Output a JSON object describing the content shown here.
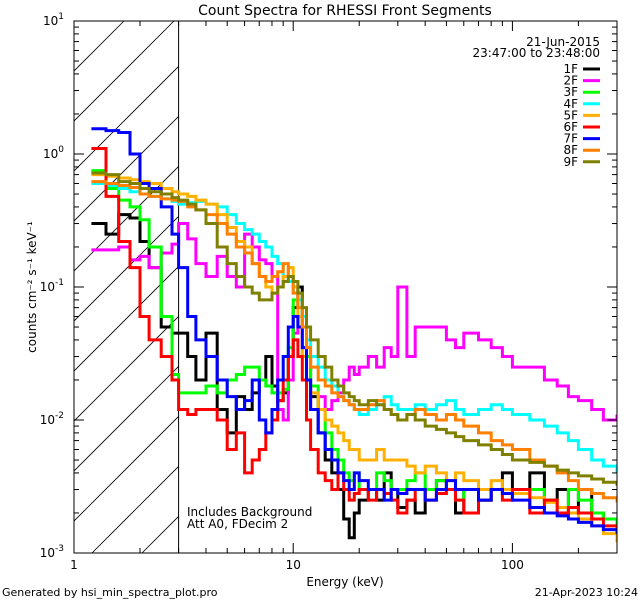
{
  "chart_data": {
    "type": "line",
    "title": "Count Spectra for RHESSI Front Segments",
    "xlabel": "Energy (keV)",
    "ylabel": "counts cm⁻² s⁻¹ keV⁻¹",
    "xscale": "log",
    "yscale": "log",
    "xlim": [
      1,
      300
    ],
    "ylim": [
      0.001,
      10
    ],
    "x_ticks": [
      {
        "v": 1,
        "label": "1"
      },
      {
        "v": 10,
        "label": "10"
      },
      {
        "v": 100,
        "label": "100"
      }
    ],
    "y_ticks": [
      {
        "v": 0.001,
        "base": "10",
        "exp": "-3"
      },
      {
        "v": 0.01,
        "base": "10",
        "exp": "-2"
      },
      {
        "v": 0.1,
        "base": "10",
        "exp": "-1"
      },
      {
        "v": 1,
        "base": "10",
        "exp": "0"
      },
      {
        "v": 10,
        "base": "10",
        "exp": "1"
      }
    ],
    "attenuator_shade_max_kev": 3,
    "header_lines": [
      "21-Jun-2015",
      "23:47:00 to 23:48:00"
    ],
    "annotations": [
      "Includes Background",
      "Att A0, FDecim 2"
    ],
    "legend_position": "top-right",
    "series": [
      {
        "name": "1F",
        "color": "#000000",
        "x": [
          1.2,
          1.4,
          1.6,
          1.8,
          2,
          2.2,
          2.5,
          2.8,
          3,
          3.3,
          3.6,
          4,
          4.5,
          5,
          5.5,
          6,
          6.5,
          7,
          7.5,
          8,
          8.5,
          9,
          9.5,
          10,
          10.5,
          11,
          11.5,
          12,
          13,
          14,
          15,
          16,
          17,
          18,
          19,
          20,
          22,
          24,
          26,
          28,
          30,
          33,
          36,
          40,
          45,
          50,
          55,
          60,
          70,
          80,
          90,
          100,
          120,
          140,
          160,
          180,
          200,
          230,
          260,
          300
        ],
        "y": [
          0.3,
          0.25,
          0.35,
          0.33,
          0.22,
          0.14,
          0.05,
          0.045,
          0.045,
          0.03,
          0.02,
          0.045,
          0.012,
          0.008,
          0.015,
          0.012,
          0.016,
          0.02,
          0.03,
          0.018,
          0.014,
          0.016,
          0.03,
          0.07,
          0.1,
          0.06,
          0.03,
          0.015,
          0.008,
          0.005,
          0.004,
          0.003,
          0.0018,
          0.0013,
          0.002,
          0.0025,
          0.003,
          0.0025,
          0.004,
          0.003,
          0.0022,
          0.0025,
          0.002,
          0.003,
          0.0035,
          0.003,
          0.002,
          0.003,
          0.0025,
          0.003,
          0.004,
          0.003,
          0.004,
          0.0025,
          0.003,
          0.002,
          0.003,
          0.002,
          0.0018,
          0.0016
        ]
      },
      {
        "name": "2F",
        "color": "#ff00ff",
        "x": [
          1.2,
          1.4,
          1.6,
          1.8,
          2,
          2.2,
          2.5,
          2.8,
          3,
          3.3,
          3.6,
          4,
          4.5,
          5,
          5.5,
          6,
          6.5,
          7,
          7.5,
          8,
          8.5,
          9,
          9.5,
          10,
          10.5,
          11,
          11.5,
          12,
          13,
          14,
          15,
          16,
          17,
          18,
          19,
          20,
          22,
          24,
          26,
          28,
          30,
          33,
          36,
          40,
          45,
          50,
          55,
          60,
          70,
          80,
          90,
          100,
          120,
          140,
          160,
          180,
          200,
          230,
          260,
          300
        ],
        "y": [
          0.19,
          0.19,
          0.2,
          0.16,
          0.17,
          0.14,
          0.18,
          0.21,
          0.3,
          0.23,
          0.15,
          0.12,
          0.17,
          0.12,
          0.1,
          0.25,
          0.2,
          0.16,
          0.15,
          0.12,
          0.012,
          0.01,
          0.02,
          0.045,
          0.06,
          0.035,
          0.02,
          0.012,
          0.015,
          0.012,
          0.014,
          0.016,
          0.02,
          0.025,
          0.022,
          0.025,
          0.03,
          0.025,
          0.035,
          0.03,
          0.1,
          0.03,
          0.05,
          0.05,
          0.05,
          0.04,
          0.035,
          0.045,
          0.04,
          0.035,
          0.03,
          0.025,
          0.025,
          0.02,
          0.018,
          0.015,
          0.014,
          0.012,
          0.01,
          0.011
        ]
      },
      {
        "name": "3F",
        "color": "#00ff00",
        "x": [
          1.2,
          1.4,
          1.6,
          1.8,
          2,
          2.2,
          2.5,
          2.8,
          3,
          3.3,
          3.6,
          4,
          4.5,
          5,
          5.5,
          6,
          6.5,
          7,
          7.5,
          8,
          8.5,
          9,
          9.5,
          10,
          10.5,
          11,
          11.5,
          12,
          13,
          14,
          15,
          16,
          17,
          18,
          19,
          20,
          22,
          24,
          26,
          28,
          30,
          33,
          36,
          40,
          45,
          50,
          55,
          60,
          70,
          80,
          90,
          100,
          120,
          140,
          160,
          180,
          200,
          230,
          260,
          300
        ],
        "y": [
          0.75,
          0.55,
          0.45,
          0.4,
          0.32,
          0.2,
          0.06,
          0.022,
          0.016,
          0.016,
          0.016,
          0.018,
          0.016,
          0.02,
          0.022,
          0.025,
          0.025,
          0.02,
          0.018,
          0.016,
          0.016,
          0.017,
          0.035,
          0.08,
          0.07,
          0.05,
          0.03,
          0.018,
          0.012,
          0.008,
          0.006,
          0.005,
          0.004,
          0.0035,
          0.004,
          0.003,
          0.003,
          0.004,
          0.0035,
          0.003,
          0.003,
          0.0035,
          0.004,
          0.003,
          0.0035,
          0.003,
          0.0025,
          0.003,
          0.0025,
          0.003,
          0.0028,
          0.003,
          0.003,
          0.0025,
          0.002,
          0.003,
          0.0025,
          0.002,
          0.0018,
          0.0015
        ]
      },
      {
        "name": "4F",
        "color": "#00ffff",
        "x": [
          1.2,
          1.4,
          1.6,
          1.8,
          2,
          2.2,
          2.5,
          2.8,
          3,
          3.3,
          3.6,
          4,
          4.5,
          5,
          5.5,
          6,
          6.5,
          7,
          7.5,
          8,
          8.5,
          9,
          9.5,
          10,
          10.5,
          11,
          11.5,
          12,
          13,
          14,
          15,
          16,
          17,
          18,
          19,
          20,
          22,
          24,
          26,
          28,
          30,
          33,
          36,
          40,
          45,
          50,
          55,
          60,
          70,
          80,
          90,
          100,
          120,
          140,
          160,
          180,
          200,
          230,
          260,
          300
        ],
        "y": [
          0.6,
          0.58,
          0.55,
          0.52,
          0.5,
          0.48,
          0.46,
          0.44,
          0.42,
          0.43,
          0.44,
          0.42,
          0.4,
          0.35,
          0.3,
          0.27,
          0.25,
          0.22,
          0.2,
          0.17,
          0.15,
          0.12,
          0.11,
          0.09,
          0.08,
          0.06,
          0.04,
          0.03,
          0.025,
          0.02,
          0.018,
          0.015,
          0.014,
          0.013,
          0.012,
          0.011,
          0.012,
          0.013,
          0.015,
          0.013,
          0.012,
          0.012,
          0.013,
          0.012,
          0.013,
          0.014,
          0.012,
          0.011,
          0.012,
          0.013,
          0.012,
          0.011,
          0.01,
          0.009,
          0.008,
          0.007,
          0.006,
          0.005,
          0.0045,
          0.004
        ]
      },
      {
        "name": "5F",
        "color": "#ffb000",
        "x": [
          1.2,
          1.4,
          1.6,
          1.8,
          2,
          2.2,
          2.5,
          2.8,
          3,
          3.3,
          3.6,
          4,
          4.5,
          5,
          5.5,
          6,
          6.5,
          7,
          7.5,
          8,
          8.5,
          9,
          9.5,
          10,
          10.5,
          11,
          11.5,
          12,
          13,
          14,
          15,
          16,
          17,
          18,
          19,
          20,
          22,
          24,
          26,
          28,
          30,
          33,
          36,
          40,
          45,
          50,
          55,
          60,
          70,
          80,
          90,
          100,
          120,
          140,
          160,
          180,
          200,
          230,
          260,
          300
        ],
        "y": [
          0.7,
          0.68,
          0.66,
          0.64,
          0.62,
          0.6,
          0.55,
          0.52,
          0.5,
          0.48,
          0.45,
          0.42,
          0.35,
          0.28,
          0.22,
          0.2,
          0.15,
          0.12,
          0.1,
          0.09,
          0.1,
          0.12,
          0.14,
          0.1,
          0.06,
          0.03,
          0.02,
          0.016,
          0.012,
          0.01,
          0.009,
          0.008,
          0.007,
          0.006,
          0.006,
          0.005,
          0.005,
          0.006,
          0.005,
          0.005,
          0.005,
          0.0045,
          0.004,
          0.0045,
          0.004,
          0.0035,
          0.004,
          0.0035,
          0.003,
          0.0035,
          0.003,
          0.0028,
          0.0026,
          0.0024,
          0.0022,
          0.002,
          0.0018,
          0.0016,
          0.0014,
          0.0012
        ]
      },
      {
        "name": "6F",
        "color": "#ff0000",
        "x": [
          1.2,
          1.4,
          1.6,
          1.8,
          2,
          2.2,
          2.5,
          2.8,
          3,
          3.3,
          3.6,
          4,
          4.5,
          5,
          5.5,
          6,
          6.5,
          7,
          7.5,
          8,
          8.5,
          9,
          9.5,
          10,
          10.5,
          11,
          11.5,
          12,
          13,
          14,
          15,
          16,
          17,
          18,
          19,
          20,
          22,
          24,
          26,
          28,
          30,
          33,
          36,
          40,
          45,
          50,
          55,
          60,
          70,
          80,
          90,
          100,
          120,
          140,
          160,
          180,
          200,
          230,
          260,
          300
        ],
        "y": [
          1.1,
          0.48,
          0.22,
          0.14,
          0.06,
          0.04,
          0.03,
          0.02,
          0.012,
          0.011,
          0.012,
          0.012,
          0.01,
          0.006,
          0.008,
          0.004,
          0.005,
          0.006,
          0.008,
          0.01,
          0.014,
          0.02,
          0.03,
          0.04,
          0.03,
          0.02,
          0.01,
          0.006,
          0.004,
          0.0035,
          0.003,
          0.004,
          0.003,
          0.0025,
          0.0028,
          0.003,
          0.0025,
          0.003,
          0.0028,
          0.0025,
          0.002,
          0.0025,
          0.003,
          0.0025,
          0.0028,
          0.003,
          0.0025,
          0.002,
          0.0025,
          0.003,
          0.0025,
          0.003,
          0.002,
          0.0025,
          0.002,
          0.0022,
          0.002,
          0.0018,
          0.0016,
          0.0014
        ]
      },
      {
        "name": "7F",
        "color": "#0000ff",
        "x": [
          1.2,
          1.4,
          1.6,
          1.8,
          2,
          2.2,
          2.5,
          2.8,
          3,
          3.3,
          3.6,
          4,
          4.5,
          5,
          5.5,
          6,
          6.5,
          7,
          7.5,
          8,
          8.5,
          9,
          9.5,
          10,
          10.5,
          11,
          11.5,
          12,
          13,
          14,
          15,
          16,
          17,
          18,
          19,
          20,
          22,
          24,
          26,
          28,
          30,
          33,
          36,
          40,
          45,
          50,
          55,
          60,
          70,
          80,
          90,
          100,
          120,
          140,
          160,
          180,
          200,
          230,
          260,
          300
        ],
        "y": [
          1.55,
          1.5,
          1.45,
          1.0,
          0.6,
          0.55,
          0.4,
          0.25,
          0.14,
          0.06,
          0.04,
          0.03,
          0.02,
          0.015,
          0.012,
          0.014,
          0.02,
          0.01,
          0.008,
          0.012,
          0.02,
          0.03,
          0.05,
          0.06,
          0.05,
          0.035,
          0.02,
          0.012,
          0.008,
          0.006,
          0.005,
          0.004,
          0.0035,
          0.003,
          0.004,
          0.0035,
          0.003,
          0.003,
          0.0025,
          0.003,
          0.0028,
          0.003,
          0.003,
          0.0025,
          0.003,
          0.0035,
          0.003,
          0.003,
          0.0025,
          0.003,
          0.0028,
          0.0025,
          0.0022,
          0.002,
          0.0019,
          0.0018,
          0.0017,
          0.0016,
          0.0015,
          0.0014
        ]
      },
      {
        "name": "8F",
        "color": "#ff7f00",
        "x": [
          1.2,
          1.4,
          1.6,
          1.8,
          2,
          2.2,
          2.5,
          2.8,
          3,
          3.3,
          3.6,
          4,
          4.5,
          5,
          5.5,
          6,
          6.5,
          7,
          7.5,
          8,
          8.5,
          9,
          9.5,
          10,
          10.5,
          11,
          11.5,
          12,
          13,
          14,
          15,
          16,
          17,
          18,
          19,
          20,
          22,
          24,
          26,
          28,
          30,
          33,
          36,
          40,
          45,
          50,
          55,
          60,
          70,
          80,
          90,
          100,
          120,
          140,
          160,
          180,
          200,
          230,
          260,
          300
        ],
        "y": [
          0.62,
          0.6,
          0.58,
          0.56,
          0.5,
          0.48,
          0.46,
          0.45,
          0.44,
          0.4,
          0.38,
          0.35,
          0.3,
          0.25,
          0.2,
          0.18,
          0.15,
          0.12,
          0.11,
          0.12,
          0.13,
          0.15,
          0.12,
          0.09,
          0.07,
          0.05,
          0.035,
          0.025,
          0.02,
          0.018,
          0.016,
          0.015,
          0.014,
          0.013,
          0.012,
          0.012,
          0.013,
          0.014,
          0.012,
          0.011,
          0.01,
          0.011,
          0.012,
          0.011,
          0.01,
          0.011,
          0.01,
          0.009,
          0.008,
          0.007,
          0.0065,
          0.006,
          0.005,
          0.0045,
          0.004,
          0.0035,
          0.003,
          0.0028,
          0.0026,
          0.0024
        ]
      },
      {
        "name": "9F",
        "color": "#808000",
        "x": [
          1.2,
          1.4,
          1.6,
          1.8,
          2,
          2.2,
          2.5,
          2.8,
          3,
          3.3,
          3.6,
          4,
          4.5,
          5,
          5.5,
          6,
          6.5,
          7,
          7.5,
          8,
          8.5,
          9,
          9.5,
          10,
          10.5,
          11,
          11.5,
          12,
          13,
          14,
          15,
          16,
          17,
          18,
          19,
          20,
          22,
          24,
          26,
          28,
          30,
          33,
          36,
          40,
          45,
          50,
          55,
          60,
          70,
          80,
          90,
          100,
          120,
          140,
          160,
          180,
          200,
          230,
          260,
          300
        ],
        "y": [
          0.72,
          0.7,
          0.62,
          0.6,
          0.55,
          0.52,
          0.5,
          0.47,
          0.45,
          0.42,
          0.38,
          0.3,
          0.2,
          0.15,
          0.12,
          0.1,
          0.09,
          0.08,
          0.08,
          0.09,
          0.1,
          0.11,
          0.12,
          0.11,
          0.09,
          0.07,
          0.05,
          0.04,
          0.03,
          0.025,
          0.02,
          0.018,
          0.016,
          0.015,
          0.014,
          0.013,
          0.014,
          0.013,
          0.012,
          0.011,
          0.01,
          0.011,
          0.01,
          0.009,
          0.0085,
          0.008,
          0.0075,
          0.007,
          0.0065,
          0.006,
          0.0055,
          0.005,
          0.0048,
          0.0045,
          0.0042,
          0.004,
          0.0038,
          0.0036,
          0.0034,
          0.0032
        ]
      }
    ]
  },
  "footer": {
    "left": "Generated by hsi_min_spectra_plot.pro",
    "right": "21-Apr-2023 10:24"
  }
}
